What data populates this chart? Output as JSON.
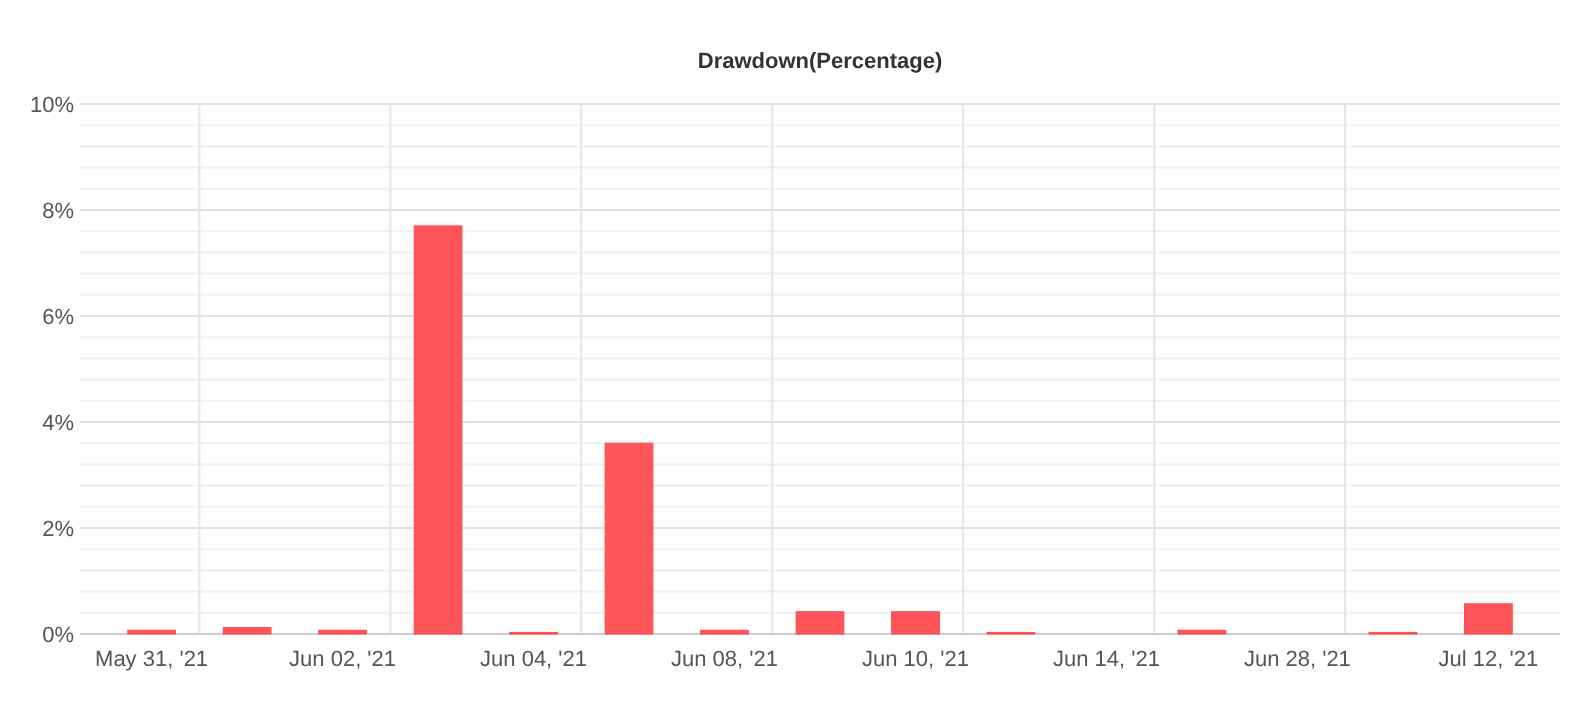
{
  "chart_data": {
    "type": "bar",
    "title": "Drawdown(Percentage)",
    "categories": [
      "May 31, '21",
      null,
      "Jun 02, '21",
      null,
      "Jun 04, '21",
      null,
      "Jun 08, '21",
      null,
      "Jun 10, '21",
      null,
      "Jun 14, '21",
      null,
      "Jun 28, '21",
      null,
      "Jul 12, '21"
    ],
    "values": [
      0.07,
      0.12,
      0.07,
      7.7,
      0.03,
      3.6,
      0.07,
      0.42,
      0.42,
      0.03,
      0,
      0.07,
      0,
      0.03,
      0.57
    ],
    "color": "#ff4b4f",
    "ylim": [
      0,
      10
    ],
    "yticks": [
      {
        "value": 0,
        "label": "0%"
      },
      {
        "value": 2,
        "label": "2%"
      },
      {
        "value": 4,
        "label": "4%"
      },
      {
        "value": 6,
        "label": "6%"
      },
      {
        "value": 8,
        "label": "8%"
      },
      {
        "value": 10,
        "label": "10%"
      }
    ],
    "grid": true
  }
}
